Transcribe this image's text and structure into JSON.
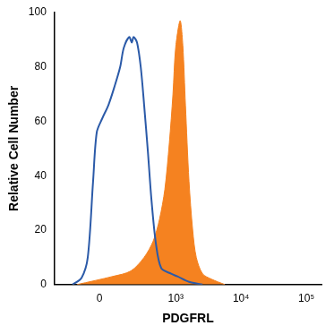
{
  "chart_data": {
    "type": "line",
    "x_label": "PDGFRL",
    "y_label": "Relative Cell Number",
    "xlim": [
      -320,
      170000
    ],
    "xticks": [
      0,
      {
        "value": 1000,
        "label": "10³"
      },
      {
        "value": 10000,
        "label": "10⁴"
      },
      {
        "value": 100000,
        "label": "10⁵"
      }
    ],
    "ylim": [
      0,
      100
    ],
    "yticks": [
      0,
      20,
      40,
      60,
      80,
      100
    ],
    "grid": false,
    "series": [
      {
        "type": "area",
        "color": "#f58220",
        "x": [
          -120,
          67,
          184,
          316,
          444,
          559,
          678,
          796,
          906,
          997,
          1169,
          1285,
          1411,
          1600,
          1822,
          2069,
          2580,
          3535,
          5672
        ],
        "values": [
          0,
          3,
          5,
          10,
          16,
          24,
          35,
          52,
          70,
          87,
          97,
          88,
          66,
          38,
          20,
          10,
          4,
          2,
          0
        ]
      },
      {
        "type": "line",
        "color": "#2b5aa8",
        "x": [
          -150,
          -92,
          -58,
          -31,
          -13,
          13,
          44,
          77,
          109,
          132,
          171,
          192,
          207,
          239,
          277,
          316,
          364,
          417,
          491,
          596,
          848,
          1062,
          1600,
          2580
        ],
        "values": [
          0,
          2.5,
          10,
          38,
          56,
          61,
          66,
          73,
          80,
          87,
          91,
          89,
          91,
          89,
          80,
          66,
          49,
          31,
          15,
          6,
          4,
          3,
          1,
          0
        ]
      }
    ]
  }
}
